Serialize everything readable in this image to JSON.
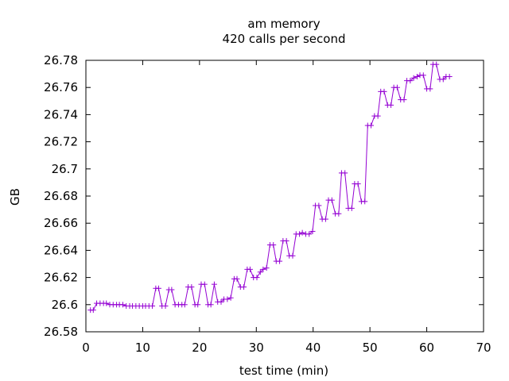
{
  "chart_data": {
    "type": "line",
    "title": "am memory",
    "subtitle": "420 calls per second",
    "xlabel": "test time (min)",
    "ylabel": "GB",
    "xlim": [
      0,
      70
    ],
    "ylim": [
      26.58,
      26.78
    ],
    "x_ticks": [
      "0",
      "10",
      "20",
      "30",
      "40",
      "50",
      "60",
      "70"
    ],
    "y_ticks": [
      "26.58",
      "26.6",
      "26.62",
      "26.64",
      "26.66",
      "26.68",
      "26.7",
      "26.72",
      "26.74",
      "26.76",
      "26.78"
    ],
    "grid": false,
    "legend": "none",
    "series": [
      {
        "color": "#9400d3",
        "marker": "plus",
        "points": [
          [
            0.8,
            26.596
          ],
          [
            1.3,
            26.596
          ],
          [
            1.9,
            26.601
          ],
          [
            2.5,
            26.601
          ],
          [
            3.1,
            26.601
          ],
          [
            3.6,
            26.601
          ],
          [
            4.2,
            26.6
          ],
          [
            4.8,
            26.6
          ],
          [
            5.4,
            26.6
          ],
          [
            5.9,
            26.6
          ],
          [
            6.5,
            26.6
          ],
          [
            7.1,
            26.599
          ],
          [
            7.7,
            26.599
          ],
          [
            8.2,
            26.599
          ],
          [
            8.8,
            26.599
          ],
          [
            9.4,
            26.599
          ],
          [
            10.0,
            26.599
          ],
          [
            10.5,
            26.599
          ],
          [
            11.1,
            26.599
          ],
          [
            11.7,
            26.599
          ],
          [
            12.3,
            26.612
          ],
          [
            12.8,
            26.612
          ],
          [
            13.4,
            26.599
          ],
          [
            14.0,
            26.599
          ],
          [
            14.6,
            26.611
          ],
          [
            15.1,
            26.611
          ],
          [
            15.7,
            26.6
          ],
          [
            16.3,
            26.6
          ],
          [
            16.9,
            26.6
          ],
          [
            17.4,
            26.6
          ],
          [
            18.0,
            26.613
          ],
          [
            18.6,
            26.613
          ],
          [
            19.2,
            26.6
          ],
          [
            19.7,
            26.6
          ],
          [
            20.3,
            26.615
          ],
          [
            20.9,
            26.615
          ],
          [
            21.5,
            26.6
          ],
          [
            22.0,
            26.6
          ],
          [
            22.6,
            26.615
          ],
          [
            23.2,
            26.602
          ],
          [
            23.8,
            26.602
          ],
          [
            24.3,
            26.604
          ],
          [
            24.9,
            26.604
          ],
          [
            25.5,
            26.605
          ],
          [
            26.1,
            26.619
          ],
          [
            26.6,
            26.619
          ],
          [
            27.2,
            26.613
          ],
          [
            27.8,
            26.613
          ],
          [
            28.4,
            26.626
          ],
          [
            28.9,
            26.626
          ],
          [
            29.5,
            26.62
          ],
          [
            30.1,
            26.62
          ],
          [
            30.7,
            26.624
          ],
          [
            31.2,
            26.626
          ],
          [
            31.8,
            26.627
          ],
          [
            32.4,
            26.644
          ],
          [
            33.0,
            26.644
          ],
          [
            33.5,
            26.632
          ],
          [
            34.1,
            26.632
          ],
          [
            34.7,
            26.647
          ],
          [
            35.3,
            26.647
          ],
          [
            35.8,
            26.636
          ],
          [
            36.4,
            26.636
          ],
          [
            37.0,
            26.652
          ],
          [
            37.6,
            26.652
          ],
          [
            38.1,
            26.653
          ],
          [
            38.7,
            26.652
          ],
          [
            39.3,
            26.652
          ],
          [
            39.9,
            26.654
          ],
          [
            40.4,
            26.673
          ],
          [
            41.0,
            26.673
          ],
          [
            41.6,
            26.663
          ],
          [
            42.2,
            26.663
          ],
          [
            42.7,
            26.677
          ],
          [
            43.3,
            26.677
          ],
          [
            43.9,
            26.667
          ],
          [
            44.5,
            26.667
          ],
          [
            45.0,
            26.697
          ],
          [
            45.6,
            26.697
          ],
          [
            46.2,
            26.671
          ],
          [
            46.8,
            26.671
          ],
          [
            47.3,
            26.689
          ],
          [
            47.9,
            26.689
          ],
          [
            48.5,
            26.676
          ],
          [
            49.1,
            26.676
          ],
          [
            49.6,
            26.732
          ],
          [
            50.2,
            26.732
          ],
          [
            50.8,
            26.739
          ],
          [
            51.4,
            26.739
          ],
          [
            51.9,
            26.757
          ],
          [
            52.5,
            26.757
          ],
          [
            53.1,
            26.747
          ],
          [
            53.7,
            26.747
          ],
          [
            54.2,
            26.76
          ],
          [
            54.8,
            26.76
          ],
          [
            55.4,
            26.751
          ],
          [
            56.0,
            26.751
          ],
          [
            56.5,
            26.765
          ],
          [
            57.1,
            26.765
          ],
          [
            57.7,
            26.767
          ],
          [
            58.3,
            26.768
          ],
          [
            58.8,
            26.769
          ],
          [
            59.4,
            26.769
          ],
          [
            60.0,
            26.759
          ],
          [
            60.6,
            26.759
          ],
          [
            61.1,
            26.777
          ],
          [
            61.7,
            26.777
          ],
          [
            62.3,
            26.766
          ],
          [
            62.9,
            26.766
          ],
          [
            63.4,
            26.768
          ],
          [
            64.0,
            26.768
          ]
        ]
      }
    ]
  }
}
